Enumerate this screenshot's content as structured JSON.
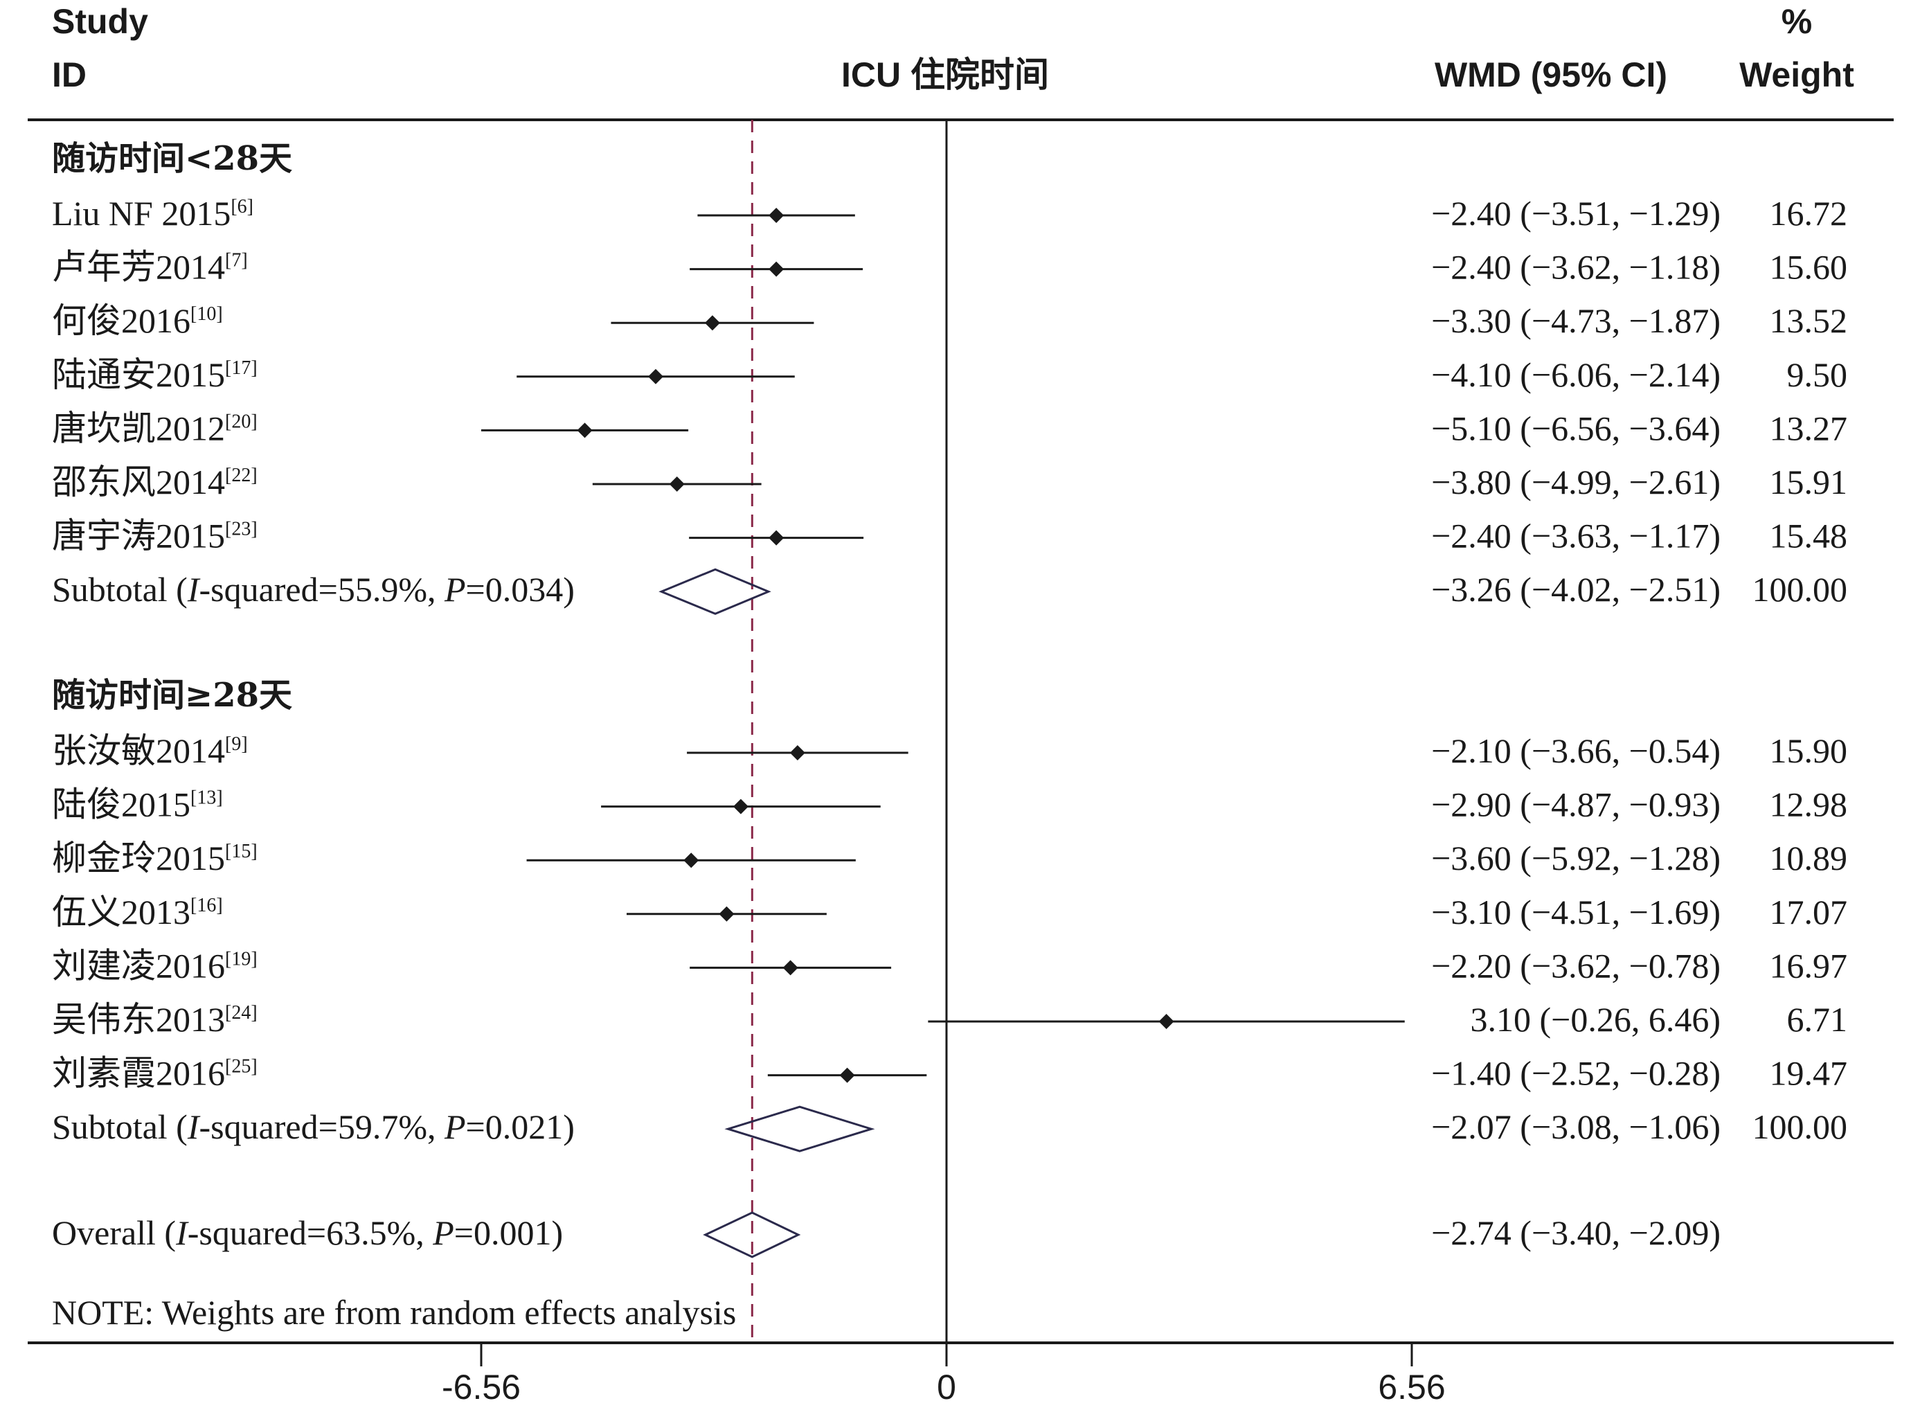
{
  "header": {
    "study_line1": "Study",
    "study_line2": "ID",
    "outcome": "ICU 住院时间",
    "effect_label": "WMD (95% CI)",
    "weight_line1": "%",
    "weight_line2": "Weight"
  },
  "note": "NOTE: Weights are from random effects analysis",
  "axis_ticks": [
    "-6.56",
    "0",
    "6.56"
  ],
  "colors": {
    "ink": "#1a1a1a",
    "diamond": "#2b2a4c",
    "overall_line": "#8b2a4a"
  },
  "chart_data": {
    "type": "forest",
    "measure": "WMD (95% CI)",
    "xlim": [
      -13.12,
      13.12
    ],
    "x_ticks": [
      -6.56,
      0,
      6.56
    ],
    "null_line": 0,
    "overall_reference": -2.74,
    "groups": [
      {
        "label": "随访时间<28天",
        "studies": [
          {
            "study": "Liu NF 2015",
            "ref": "[6]",
            "wmd": -2.4,
            "lo": -3.51,
            "hi": -1.29,
            "ci_text": "−2.40 (−3.51, −1.29)",
            "weight": "16.72"
          },
          {
            "study": "卢年芳2014",
            "ref": "[7]",
            "wmd": -2.4,
            "lo": -3.62,
            "hi": -1.18,
            "ci_text": "−2.40 (−3.62, −1.18)",
            "weight": "15.60"
          },
          {
            "study": "何俊2016",
            "ref": "[10]",
            "wmd": -3.3,
            "lo": -4.73,
            "hi": -1.87,
            "ci_text": "−3.30 (−4.73, −1.87)",
            "weight": "13.52"
          },
          {
            "study": "陆通安2015",
            "ref": "[17]",
            "wmd": -4.1,
            "lo": -6.06,
            "hi": -2.14,
            "ci_text": "−4.10 (−6.06, −2.14)",
            "weight": "9.50"
          },
          {
            "study": "唐坎凯2012",
            "ref": "[20]",
            "wmd": -5.1,
            "lo": -6.56,
            "hi": -3.64,
            "ci_text": "−5.10 (−6.56, −3.64)",
            "weight": "13.27"
          },
          {
            "study": "邵东风2014",
            "ref": "[22]",
            "wmd": -3.8,
            "lo": -4.99,
            "hi": -2.61,
            "ci_text": "−3.80 (−4.99, −2.61)",
            "weight": "15.91"
          },
          {
            "study": "唐宇涛2015",
            "ref": "[23]",
            "wmd": -2.4,
            "lo": -3.63,
            "hi": -1.17,
            "ci_text": "−2.40 (−3.63, −1.17)",
            "weight": "15.48"
          }
        ],
        "subtotal": {
          "pre": "Subtotal  (",
          "i_label": "I",
          "i_rest": "-squared=55.9%, ",
          "p_label": "P",
          "p_rest": "=0.034)",
          "wmd": -3.26,
          "lo": -4.02,
          "hi": -2.51,
          "ci_text": "−3.26 (−4.02, −2.51)",
          "weight": "100.00"
        }
      },
      {
        "label": "随访时间≥28天",
        "studies": [
          {
            "study": "张汝敏2014",
            "ref": "[9]",
            "wmd": -2.1,
            "lo": -3.66,
            "hi": -0.54,
            "ci_text": "−2.10 (−3.66, −0.54)",
            "weight": "15.90"
          },
          {
            "study": "陆俊2015",
            "ref": "[13]",
            "wmd": -2.9,
            "lo": -4.87,
            "hi": -0.93,
            "ci_text": "−2.90 (−4.87, −0.93)",
            "weight": "12.98"
          },
          {
            "study": "柳金玲2015",
            "ref": "[15]",
            "wmd": -3.6,
            "lo": -5.92,
            "hi": -1.28,
            "ci_text": "−3.60 (−5.92, −1.28)",
            "weight": "10.89"
          },
          {
            "study": "伍义2013",
            "ref": "[16]",
            "wmd": -3.1,
            "lo": -4.51,
            "hi": -1.69,
            "ci_text": "−3.10 (−4.51, −1.69)",
            "weight": "17.07"
          },
          {
            "study": "刘建凌2016",
            "ref": "[19]",
            "wmd": -2.2,
            "lo": -3.62,
            "hi": -0.78,
            "ci_text": "−2.20 (−3.62, −0.78)",
            "weight": "16.97"
          },
          {
            "study": "吴伟东2013",
            "ref": "[24]",
            "wmd": 3.1,
            "lo": -0.26,
            "hi": 6.46,
            "ci_text": "3.10 (−0.26, 6.46)",
            "weight": "6.71"
          },
          {
            "study": "刘素霞2016",
            "ref": "[25]",
            "wmd": -1.4,
            "lo": -2.52,
            "hi": -0.28,
            "ci_text": "−1.40 (−2.52, −0.28)",
            "weight": "19.47"
          }
        ],
        "subtotal": {
          "pre": "Subtotal  (",
          "i_label": "I",
          "i_rest": "-squared=59.7%, ",
          "p_label": "P",
          "p_rest": "=0.021)",
          "wmd": -2.07,
          "lo": -3.08,
          "hi": -1.06,
          "ci_text": "−2.07 (−3.08, −1.06)",
          "weight": "100.00"
        }
      }
    ],
    "overall": {
      "pre": "Overall  (",
      "i_label": "I",
      "i_rest": "-squared=63.5%, ",
      "p_label": "P",
      "p_rest": "=0.001)",
      "wmd": -2.74,
      "lo": -3.4,
      "hi": -2.09,
      "ci_text": "−2.74 (−3.40, −2.09)",
      "weight": ""
    }
  }
}
